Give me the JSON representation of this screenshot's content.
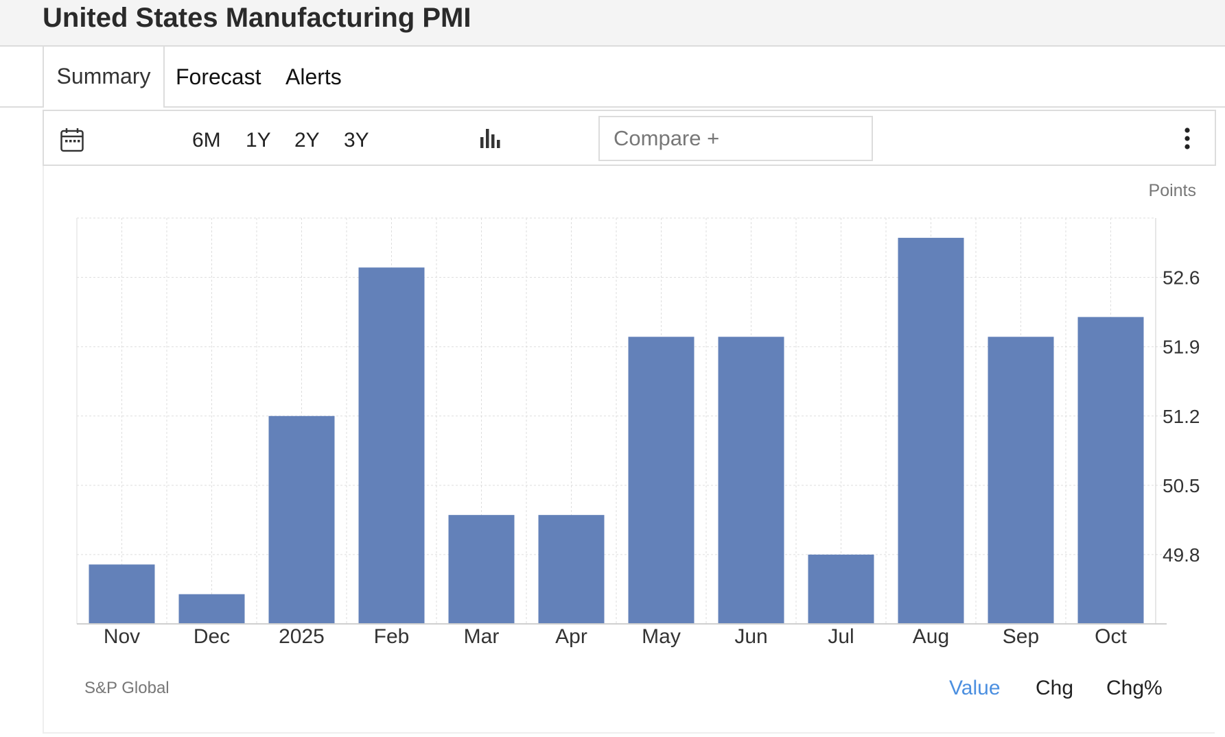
{
  "page": {
    "title": "United States Manufacturing PMI"
  },
  "tabs": [
    {
      "label": "Summary",
      "active": true
    },
    {
      "label": "Forecast",
      "active": false
    },
    {
      "label": "Alerts",
      "active": false
    }
  ],
  "toolbar": {
    "calendar_icon": "calendar-icon",
    "ranges": [
      "6M",
      "1Y",
      "2Y",
      "3Y"
    ],
    "chart_type_icon": "bar-chart-icon",
    "compare_placeholder": "Compare +",
    "more_icon": "vertical-dots-icon"
  },
  "units_label": "Points",
  "source": "S&P Global",
  "modes": [
    {
      "label": "Value",
      "active": true
    },
    {
      "label": "Chg",
      "active": false
    },
    {
      "label": "Chg%",
      "active": false
    }
  ],
  "colors": {
    "bar": "#6381b9",
    "active_mode": "#4b8fe0",
    "grid": "#dddddd"
  },
  "chart_data": {
    "type": "bar",
    "title": "United States Manufacturing PMI",
    "ylabel": "Points",
    "categories": [
      "Nov",
      "Dec",
      "2025",
      "Feb",
      "Mar",
      "Apr",
      "May",
      "Jun",
      "Jul",
      "Aug",
      "Sep",
      "Oct"
    ],
    "values": [
      49.7,
      49.4,
      51.2,
      52.7,
      50.2,
      50.2,
      52.0,
      52.0,
      49.8,
      53.0,
      52.0,
      52.2
    ],
    "ylim": [
      49.1,
      53.2
    ],
    "yticks": [
      49.8,
      50.5,
      51.2,
      51.9,
      52.6
    ],
    "ytick_labels": [
      "49.8",
      "50.5",
      "51.2",
      "51.9",
      "52.6"
    ],
    "grid": true,
    "y_axis_side": "right"
  }
}
